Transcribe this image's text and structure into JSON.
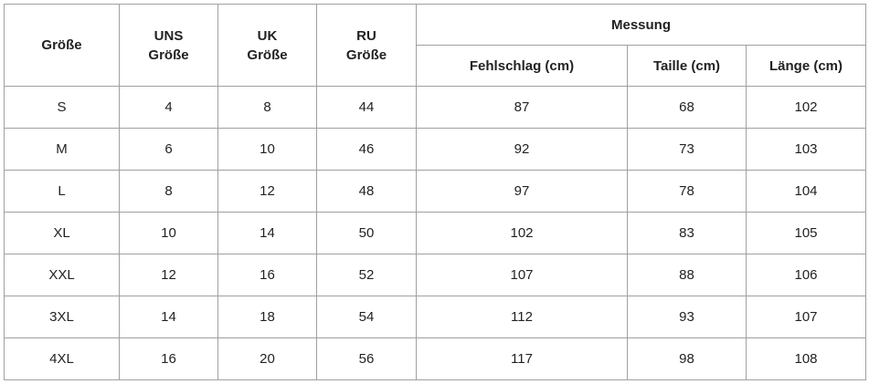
{
  "table": {
    "header": {
      "size": "Größe",
      "us": [
        "UNS",
        "Größe"
      ],
      "uk": [
        "UK",
        "Größe"
      ],
      "ru": [
        "RU",
        "Größe"
      ],
      "measure": "Messung",
      "bust": "Fehlschlag (cm)",
      "waist": "Taille (cm)",
      "length": "Länge (cm)"
    },
    "rows": [
      [
        "S",
        4,
        8,
        44,
        87,
        68,
        102
      ],
      [
        "M",
        6,
        10,
        46,
        92,
        73,
        103
      ],
      [
        "L",
        8,
        12,
        48,
        97,
        78,
        104
      ],
      [
        "XL",
        10,
        14,
        50,
        102,
        83,
        105
      ],
      [
        "XXL",
        12,
        16,
        52,
        107,
        88,
        106
      ],
      [
        "3XL",
        14,
        18,
        54,
        112,
        93,
        107
      ],
      [
        "4XL",
        16,
        20,
        56,
        117,
        98,
        108
      ]
    ]
  }
}
